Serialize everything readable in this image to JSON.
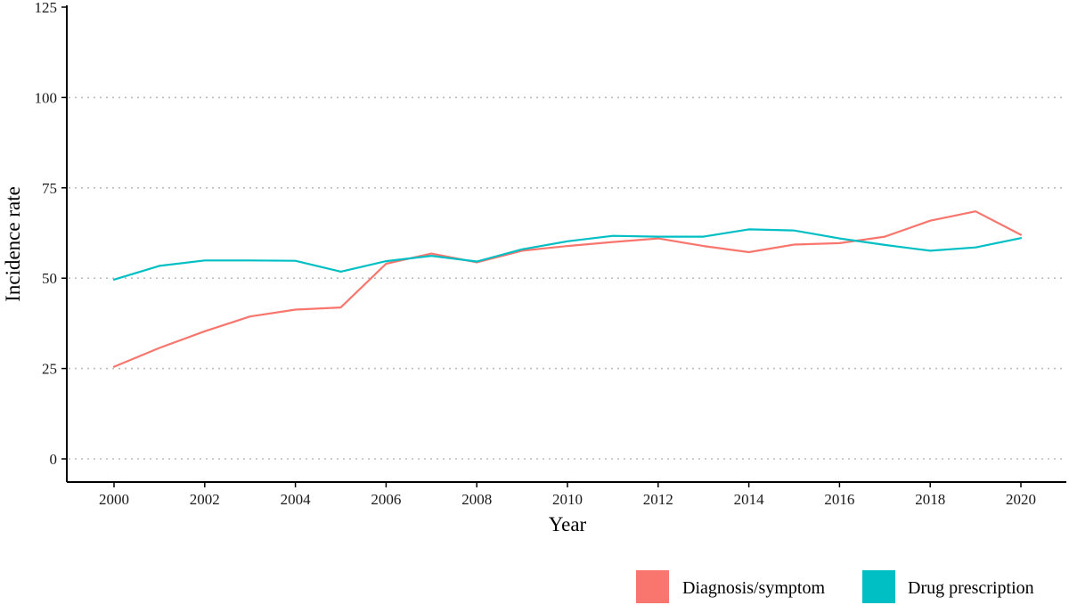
{
  "chart_data": {
    "type": "line",
    "title": "",
    "xlabel": "Year",
    "ylabel": "Incidence rate",
    "xlim": [
      2000,
      2020
    ],
    "ylim": [
      0,
      125
    ],
    "x_ticks": [
      2000,
      2002,
      2004,
      2006,
      2008,
      2010,
      2012,
      2014,
      2016,
      2018,
      2020
    ],
    "y_ticks": [
      0,
      25,
      50,
      75,
      100,
      125
    ],
    "grid": "horizontal dotted at y ticks",
    "legend_position": "bottom-right",
    "x": [
      2000,
      2001,
      2002,
      2003,
      2004,
      2005,
      2006,
      2007,
      2008,
      2009,
      2010,
      2011,
      2012,
      2013,
      2014,
      2015,
      2016,
      2017,
      2018,
      2019,
      2020
    ],
    "series": [
      {
        "name": "Diagnosis/symptom",
        "color": "#F8766D",
        "values": [
          25.5,
          30.7,
          35.3,
          39.4,
          41.3,
          41.9,
          54.0,
          56.8,
          54.4,
          57.6,
          58.9,
          60.0,
          61.0,
          58.9,
          57.2,
          59.3,
          59.7,
          61.5,
          65.9,
          68.5,
          62.0
        ]
      },
      {
        "name": "Drug prescription",
        "color": "#00BFC4",
        "values": [
          49.6,
          53.4,
          54.9,
          54.9,
          54.8,
          51.8,
          54.7,
          56.2,
          54.6,
          58.0,
          60.2,
          61.7,
          61.5,
          61.5,
          63.5,
          63.2,
          61.0,
          59.2,
          57.6,
          58.5,
          61.1
        ]
      }
    ]
  }
}
